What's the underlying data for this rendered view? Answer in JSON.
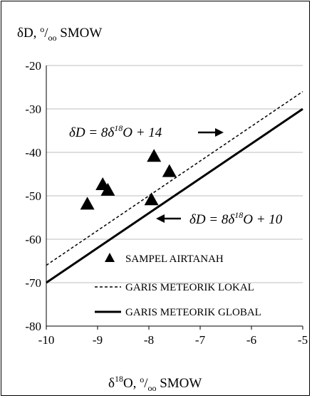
{
  "chart_data": {
    "type": "scatter",
    "title": "",
    "ylabel": {
      "main": "δD, ",
      "sup": "o",
      "sub": "oo",
      "tail": " SMOW"
    },
    "xlabel": {
      "delta": "δ",
      "sup18": "18",
      "mid": "O, ",
      "sup": "o",
      "sub": "oo",
      "tail": " SMOW"
    },
    "xlim": [
      -10,
      -5
    ],
    "ylim": [
      -80,
      -20
    ],
    "xticks": [
      "-10",
      "-9",
      "-8",
      "-7",
      "-6",
      "-5"
    ],
    "yticks": [
      "-20",
      "-30",
      "-40",
      "-50",
      "-60",
      "-70",
      "-80"
    ],
    "series": [
      {
        "name": "SAMPEL AIRTANAH",
        "kind": "scatter",
        "marker": "triangle",
        "x": [
          -9.2,
          -8.9,
          -8.8,
          -7.95,
          -7.9,
          -7.6
        ],
        "y": [
          -52,
          -47.5,
          -48.8,
          -51,
          -41,
          -44.5
        ]
      },
      {
        "name": "GARIS METEORIK LOKAL",
        "kind": "line",
        "style": "dashed",
        "x": [
          -10,
          -5
        ],
        "y": [
          -66,
          -26
        ]
      },
      {
        "name": "GARIS METEORIK GLOBAL",
        "kind": "line",
        "style": "solid",
        "x": [
          -10,
          -5
        ],
        "y": [
          -70,
          -30
        ]
      }
    ],
    "annotations": [
      {
        "pre": "δD = 8δ",
        "sup": "18",
        "post": "O + 14",
        "arrow": "right"
      },
      {
        "pre": "δD = 8δ",
        "sup": "18",
        "post": "O + 10",
        "arrow": "left"
      }
    ],
    "grid": {
      "y": true,
      "x": false
    },
    "legend_position": "bottom-right inside plot",
    "colors": {
      "line": "#000000",
      "grid": "#bfbfbf",
      "marker": "#000000"
    }
  }
}
